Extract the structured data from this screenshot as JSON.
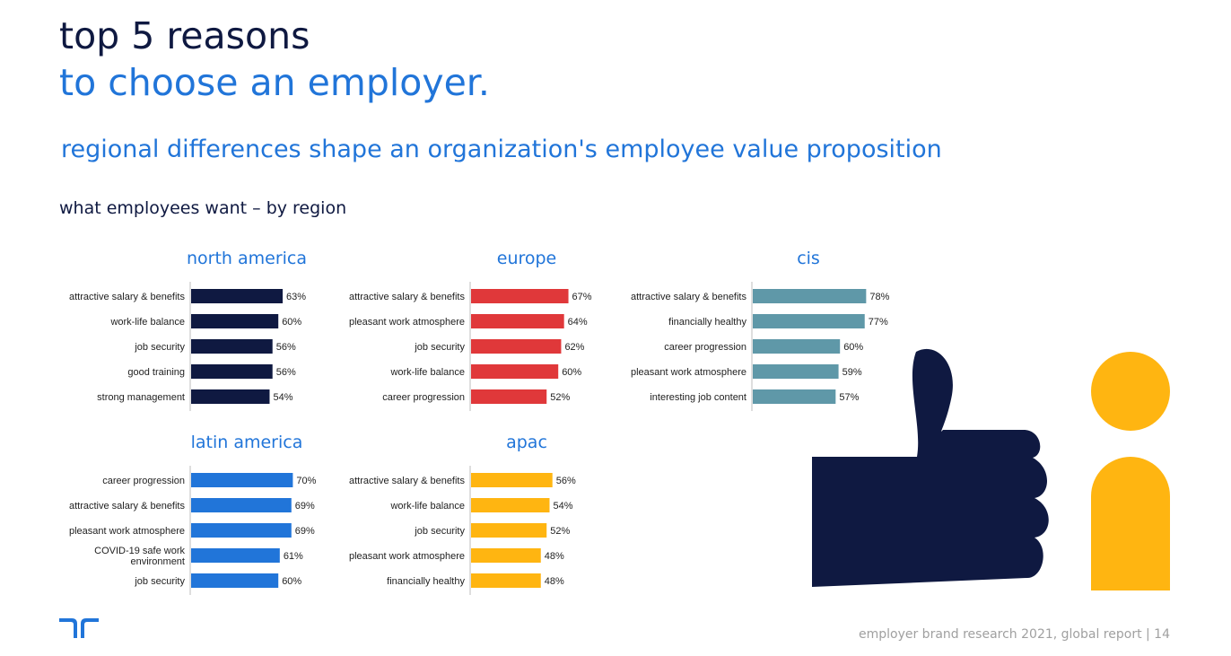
{
  "header": {
    "title_line1": "top 5 reasons",
    "title_line2": "to choose an employer.",
    "subtitle": "regional differences shape an organization's employee value proposition",
    "section_label": "what employees want – by region"
  },
  "footer": {
    "text": "employer brand research 2021, global report  |  14"
  },
  "icons": {
    "logo": "randstad-logo-icon",
    "thumb": "thumbs-up-icon",
    "person": "person-icon"
  },
  "colors": {
    "navy": "#0f1941",
    "blue": "#2175d9",
    "red": "#e0383a",
    "teal": "#5f98a8",
    "yellow": "#ffb511",
    "footer_gray": "#a0a0a0"
  },
  "chart_data": [
    {
      "type": "bar",
      "orientation": "horizontal",
      "title": "north america",
      "color": "#0f1941",
      "categories": [
        "attractive salary & benefits",
        "work-life balance",
        "job security",
        "good training",
        "strong management"
      ],
      "values": [
        63,
        60,
        56,
        56,
        54
      ],
      "value_labels": [
        "63%",
        "60%",
        "56%",
        "56%",
        "54%"
      ]
    },
    {
      "type": "bar",
      "orientation": "horizontal",
      "title": "europe",
      "color": "#e0383a",
      "categories": [
        "attractive salary & benefits",
        "pleasant work atmosphere",
        "job security",
        "work-life balance",
        "career progression"
      ],
      "values": [
        67,
        64,
        62,
        60,
        52
      ],
      "value_labels": [
        "67%",
        "64%",
        "62%",
        "60%",
        "52%"
      ]
    },
    {
      "type": "bar",
      "orientation": "horizontal",
      "title": "cis",
      "color": "#5f98a8",
      "categories": [
        "attractive salary & benefits",
        "financially healthy",
        "career progression",
        "pleasant work atmosphere",
        "interesting job content"
      ],
      "values": [
        78,
        77,
        60,
        59,
        57
      ],
      "value_labels": [
        "78%",
        "77%",
        "60%",
        "59%",
        "57%"
      ]
    },
    {
      "type": "bar",
      "orientation": "horizontal",
      "title": "latin america",
      "color": "#2175d9",
      "categories": [
        "career progression",
        "attractive salary & benefits",
        "pleasant work atmosphere",
        "COVID-19 safe work environment",
        "job security"
      ],
      "values": [
        70,
        69,
        69,
        61,
        60
      ],
      "value_labels": [
        "70%",
        "69%",
        "69%",
        "61%",
        "60%"
      ]
    },
    {
      "type": "bar",
      "orientation": "horizontal",
      "title": "apac",
      "color": "#ffb511",
      "categories": [
        "attractive salary & benefits",
        "work-life balance",
        "job security",
        "pleasant work atmosphere",
        "financially healthy"
      ],
      "values": [
        56,
        54,
        52,
        48,
        48
      ],
      "value_labels": [
        "56%",
        "54%",
        "52%",
        "48%",
        "48%"
      ]
    }
  ]
}
